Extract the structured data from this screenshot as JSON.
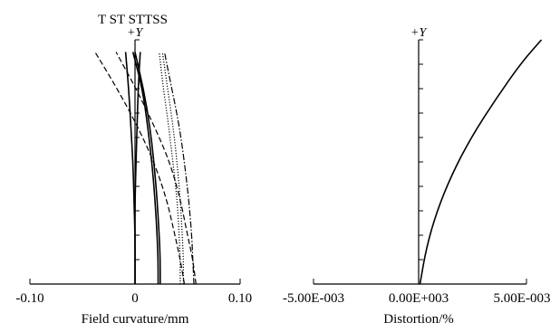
{
  "chart_data": [
    {
      "type": "line",
      "top_labels": "T ST STTSS",
      "axis_arrow_label": "+Y",
      "xlabel": "Field curvature/mm",
      "ylabel": "",
      "xlim": [
        -0.1,
        0.1
      ],
      "ylim": [
        0,
        1
      ],
      "x_tick_labels": [
        "-0.10",
        "0",
        "0.10"
      ],
      "grid": false,
      "legend": "none",
      "series": [
        {
          "style": "dashed",
          "x": [
            0.047,
            0.043,
            0.038,
            0.03,
            0.018,
            0.002,
            -0.017,
            -0.038
          ],
          "y": [
            0,
            0.1,
            0.2,
            0.35,
            0.5,
            0.65,
            0.8,
            0.95
          ]
        },
        {
          "style": "dashed",
          "x": [
            0.058,
            0.055,
            0.05,
            0.043,
            0.033,
            0.018,
            0.001,
            -0.018
          ],
          "y": [
            0,
            0.1,
            0.2,
            0.35,
            0.5,
            0.65,
            0.8,
            0.95
          ]
        },
        {
          "style": "solid",
          "x": [
            0.0,
            0.0,
            0.0,
            -0.001,
            -0.002,
            -0.004,
            -0.006,
            -0.009
          ],
          "y": [
            0,
            0.1,
            0.2,
            0.35,
            0.5,
            0.65,
            0.8,
            0.95
          ]
        },
        {
          "style": "solid",
          "x": [
            0.0,
            0.0,
            0.0,
            0.0,
            0.001,
            0.002,
            0.003,
            0.005
          ],
          "y": [
            0,
            0.1,
            0.2,
            0.35,
            0.5,
            0.65,
            0.8,
            0.95
          ]
        },
        {
          "style": "solid",
          "x": [
            0.024,
            0.024,
            0.023,
            0.021,
            0.018,
            0.014,
            0.008,
            0.0
          ],
          "y": [
            0,
            0.1,
            0.2,
            0.35,
            0.5,
            0.65,
            0.8,
            0.95
          ]
        },
        {
          "style": "solid",
          "x": [
            0.022,
            0.022,
            0.021,
            0.019,
            0.016,
            0.012,
            0.007,
            -0.002
          ],
          "y": [
            0,
            0.1,
            0.2,
            0.35,
            0.5,
            0.65,
            0.8,
            0.95
          ]
        },
        {
          "style": "dotted",
          "x": [
            0.043,
            0.043,
            0.042,
            0.04,
            0.036,
            0.032,
            0.027,
            0.023
          ],
          "y": [
            0,
            0.1,
            0.2,
            0.35,
            0.5,
            0.65,
            0.8,
            0.95
          ]
        },
        {
          "style": "dotted",
          "x": [
            0.046,
            0.046,
            0.045,
            0.043,
            0.04,
            0.036,
            0.031,
            0.026
          ],
          "y": [
            0,
            0.1,
            0.2,
            0.35,
            0.5,
            0.65,
            0.8,
            0.95
          ]
        },
        {
          "style": "dashdot",
          "x": [
            0.056,
            0.055,
            0.054,
            0.051,
            0.047,
            0.042,
            0.035,
            0.028
          ],
          "y": [
            0,
            0.1,
            0.2,
            0.35,
            0.5,
            0.65,
            0.8,
            0.95
          ]
        }
      ]
    },
    {
      "type": "line",
      "axis_arrow_label": "+Y",
      "xlabel": "Distortion/%",
      "ylabel": "",
      "xlim": [
        -0.005,
        0.005
      ],
      "ylim": [
        0,
        1
      ],
      "x_tick_labels": [
        "-5.00E-003",
        "0.00E+003",
        "5.00E-003"
      ],
      "grid": false,
      "legend": "none",
      "series": [
        {
          "style": "solid",
          "x": [
            0.0,
            0.0003,
            0.0008,
            0.0015,
            0.0024,
            0.0035,
            0.0047,
            0.0057
          ],
          "y": [
            0,
            0.15,
            0.3,
            0.45,
            0.6,
            0.75,
            0.9,
            1.0
          ]
        }
      ]
    }
  ]
}
